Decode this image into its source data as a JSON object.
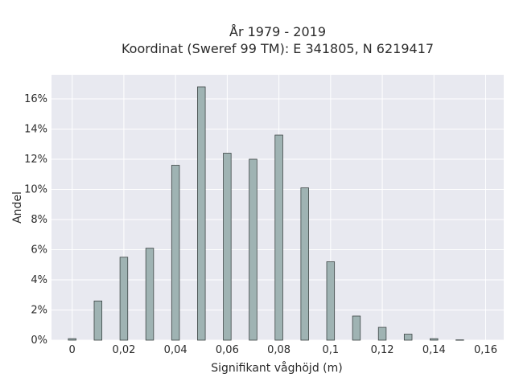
{
  "chart_data": {
    "type": "bar",
    "title": "År 1979 - 2019",
    "subtitle": "Koordinat (Sweref 99 TM): E 341805, N 6219417",
    "xlabel": "Signifikant våghöjd (m)",
    "ylabel": "Andel",
    "x": [
      0,
      0.01,
      0.02,
      0.03,
      0.04,
      0.05,
      0.06,
      0.07,
      0.08,
      0.09,
      0.1,
      0.11,
      0.12,
      0.13,
      0.14,
      0.15
    ],
    "values": [
      0.1,
      2.6,
      5.5,
      6.1,
      11.6,
      16.8,
      12.4,
      12.0,
      13.6,
      10.1,
      5.2,
      1.6,
      0.85,
      0.4,
      0.1,
      0.02
    ],
    "xlim": [
      -0.008,
      0.167
    ],
    "ylim": [
      0,
      17.6
    ],
    "xticks": [
      0,
      0.02,
      0.04,
      0.06,
      0.08,
      0.1,
      0.12,
      0.14,
      0.16
    ],
    "xtick_labels": [
      "0",
      "0,02",
      "0,04",
      "0,06",
      "0,08",
      "0,1",
      "0,12",
      "0,14",
      "0,16"
    ],
    "yticks": [
      0,
      2,
      4,
      6,
      8,
      10,
      12,
      14,
      16
    ],
    "ytick_labels": [
      "0%",
      "2%",
      "4%",
      "6%",
      "8%",
      "10%",
      "12%",
      "14%",
      "16%"
    ],
    "bar_width": 0.003,
    "grid": true,
    "colors": {
      "plot_bg": "#e8e9f0",
      "grid": "#ffffff",
      "bar_fill": "#9fb3b3",
      "bar_stroke": "#3d4545"
    }
  }
}
